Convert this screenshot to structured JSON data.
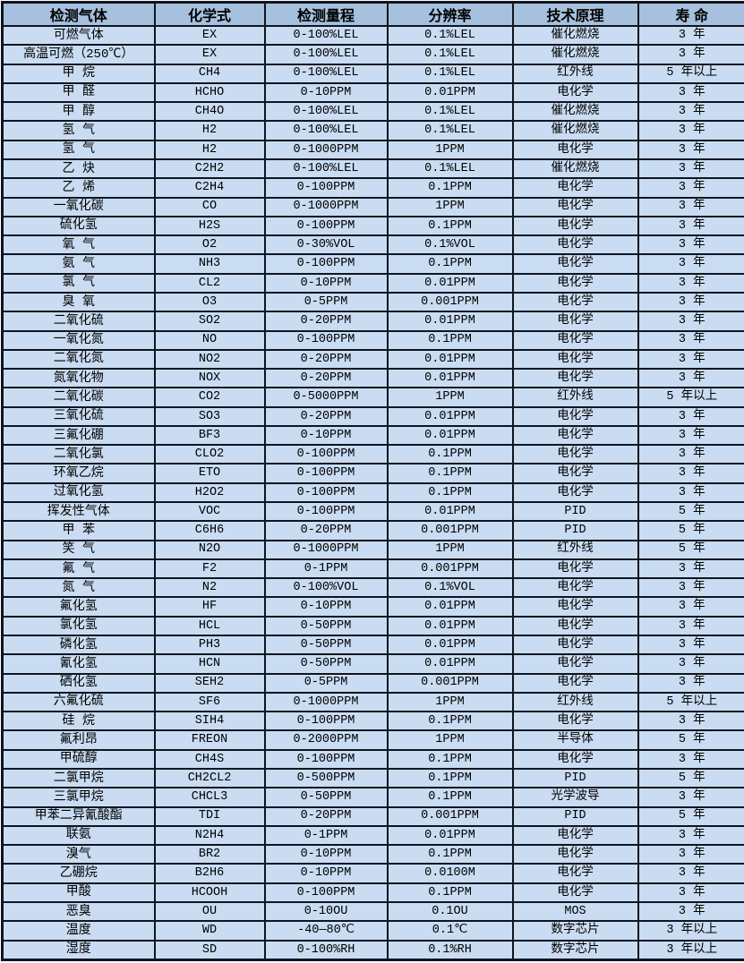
{
  "colors": {
    "header_bg": "#a6c1de",
    "row_bg": "#c9dcf2",
    "border": "#10151f",
    "text": "#000000"
  },
  "table": {
    "columns": [
      "检测气体",
      "化学式",
      "检测量程",
      "分辨率",
      "技术原理",
      "寿 命"
    ],
    "column_keys": [
      "gas",
      "formula",
      "range",
      "resolution",
      "principle",
      "lifespan"
    ],
    "rows": [
      [
        "可燃气体",
        "EX",
        "0-100%LEL",
        "0.1%LEL",
        "催化燃烧",
        "3 年"
      ],
      [
        "高温可燃（250℃）",
        "EX",
        "0-100%LEL",
        "0.1%LEL",
        "催化燃烧",
        "3 年"
      ],
      [
        "甲 烷",
        "CH4",
        "0-100%LEL",
        "0.1%LEL",
        "红外线",
        "5 年以上"
      ],
      [
        "甲 醛",
        "HCHO",
        "0-10PPM",
        "0.01PPM",
        "电化学",
        "3 年"
      ],
      [
        "甲 醇",
        "CH4O",
        "0-100%LEL",
        "0.1%LEL",
        "催化燃烧",
        "3 年"
      ],
      [
        "氢 气",
        "H2",
        "0-100%LEL",
        "0.1%LEL",
        "催化燃烧",
        "3 年"
      ],
      [
        "氢 气",
        "H2",
        "0-1000PPM",
        "1PPM",
        "电化学",
        "3 年"
      ],
      [
        "乙 炔",
        "C2H2",
        "0-100%LEL",
        "0.1%LEL",
        "催化燃烧",
        "3 年"
      ],
      [
        "乙 烯",
        "C2H4",
        "0-100PPM",
        "0.1PPM",
        "电化学",
        "3 年"
      ],
      [
        "一氧化碳",
        "CO",
        "0-1000PPM",
        "1PPM",
        "电化学",
        "3 年"
      ],
      [
        "硫化氢",
        "H2S",
        "0-100PPM",
        "0.1PPM",
        "电化学",
        "3 年"
      ],
      [
        "氧 气",
        "O2",
        "0-30%VOL",
        "0.1%VOL",
        "电化学",
        "3 年"
      ],
      [
        "氨 气",
        "NH3",
        "0-100PPM",
        "0.1PPM",
        "电化学",
        "3 年"
      ],
      [
        "氯 气",
        "CL2",
        "0-10PPM",
        "0.01PPM",
        "电化学",
        "3 年"
      ],
      [
        "臭 氧",
        "O3",
        "0-5PPM",
        "0.001PPM",
        "电化学",
        "3 年"
      ],
      [
        "二氧化硫",
        "SO2",
        "0-20PPM",
        "0.01PPM",
        "电化学",
        "3 年"
      ],
      [
        "一氧化氮",
        "NO",
        "0-100PPM",
        "0.1PPM",
        "电化学",
        "3 年"
      ],
      [
        "二氧化氮",
        "NO2",
        "0-20PPM",
        "0.01PPM",
        "电化学",
        "3 年"
      ],
      [
        "氮氧化物",
        "NOX",
        "0-20PPM",
        "0.01PPM",
        "电化学",
        "3 年"
      ],
      [
        "二氧化碳",
        "CO2",
        "0-5000PPM",
        "1PPM",
        "红外线",
        "5 年以上"
      ],
      [
        "三氧化硫",
        "SO3",
        "0-20PPM",
        "0.01PPM",
        "电化学",
        "3 年"
      ],
      [
        "三氟化硼",
        "BF3",
        "0-10PPM",
        "0.01PPM",
        "电化学",
        "3 年"
      ],
      [
        "二氧化氯",
        "CLO2",
        "0-100PPM",
        "0.1PPM",
        "电化学",
        "3 年"
      ],
      [
        "环氧乙烷",
        "ETO",
        "0-100PPM",
        "0.1PPM",
        "电化学",
        "3 年"
      ],
      [
        "过氧化氢",
        "H2O2",
        "0-100PPM",
        "0.1PPM",
        "电化学",
        "3 年"
      ],
      [
        "挥发性气体",
        "VOC",
        "0-100PPM",
        "0.01PPM",
        "PID",
        "5 年"
      ],
      [
        "甲 苯",
        "C6H6",
        "0-20PPM",
        "0.001PPM",
        "PID",
        "5 年"
      ],
      [
        "笑 气",
        "N2O",
        "0-1000PPM",
        "1PPM",
        "红外线",
        "5 年"
      ],
      [
        "氟 气",
        "F2",
        "0-1PPM",
        "0.001PPM",
        "电化学",
        "3 年"
      ],
      [
        "氮 气",
        "N2",
        "0-100%VOL",
        "0.1%VOL",
        "电化学",
        "3 年"
      ],
      [
        "氟化氢",
        "HF",
        "0-10PPM",
        "0.01PPM",
        "电化学",
        "3 年"
      ],
      [
        "氯化氢",
        "HCL",
        "0-50PPM",
        "0.01PPM",
        "电化学",
        "3 年"
      ],
      [
        "磷化氢",
        "PH3",
        "0-50PPM",
        "0.01PPM",
        "电化学",
        "3 年"
      ],
      [
        "氰化氢",
        "HCN",
        "0-50PPM",
        "0.01PPM",
        "电化学",
        "3 年"
      ],
      [
        "硒化氢",
        "SEH2",
        "0-5PPM",
        "0.001PPM",
        "电化学",
        "3 年"
      ],
      [
        "六氟化硫",
        "SF6",
        "0-1000PPM",
        "1PPM",
        "红外线",
        "5 年以上"
      ],
      [
        "硅 烷",
        "SIH4",
        "0-100PPM",
        "0.1PPM",
        "电化学",
        "3 年"
      ],
      [
        "氟利昂",
        "FREON",
        "0-2000PPM",
        "1PPM",
        "半导体",
        "5 年"
      ],
      [
        "甲硫醇",
        "CH4S",
        "0-100PPM",
        "0.1PPM",
        "电化学",
        "3 年"
      ],
      [
        "二氯甲烷",
        "CH2CL2",
        "0-500PPM",
        "0.1PPM",
        "PID",
        "5 年"
      ],
      [
        "三氯甲烷",
        "CHCL3",
        "0-50PPM",
        "0.1PPM",
        "光学波导",
        "3 年"
      ],
      [
        "甲苯二异氰酸酯",
        "TDI",
        "0-20PPM",
        "0.001PPM",
        "PID",
        "5 年"
      ],
      [
        "联氨",
        "N2H4",
        "0-1PPM",
        "0.01PPM",
        "电化学",
        "3 年"
      ],
      [
        "溴气",
        "BR2",
        "0-10PPM",
        "0.1PPM",
        "电化学",
        "3 年"
      ],
      [
        "乙硼烷",
        "B2H6",
        "0-10PPM",
        "0.0100M",
        "电化学",
        "3 年"
      ],
      [
        "甲酸",
        "HCOOH",
        "0-100PPM",
        "0.1PPM",
        "电化学",
        "3 年"
      ],
      [
        "恶臭",
        "OU",
        "0-10OU",
        "0.1OU",
        "MOS",
        "3 年"
      ],
      [
        "温度",
        "WD",
        "-40—80℃",
        "0.1℃",
        "数字芯片",
        "3 年以上"
      ],
      [
        "湿度",
        "SD",
        "0-100%RH",
        "0.1%RH",
        "数字芯片",
        "3 年以上"
      ]
    ]
  }
}
